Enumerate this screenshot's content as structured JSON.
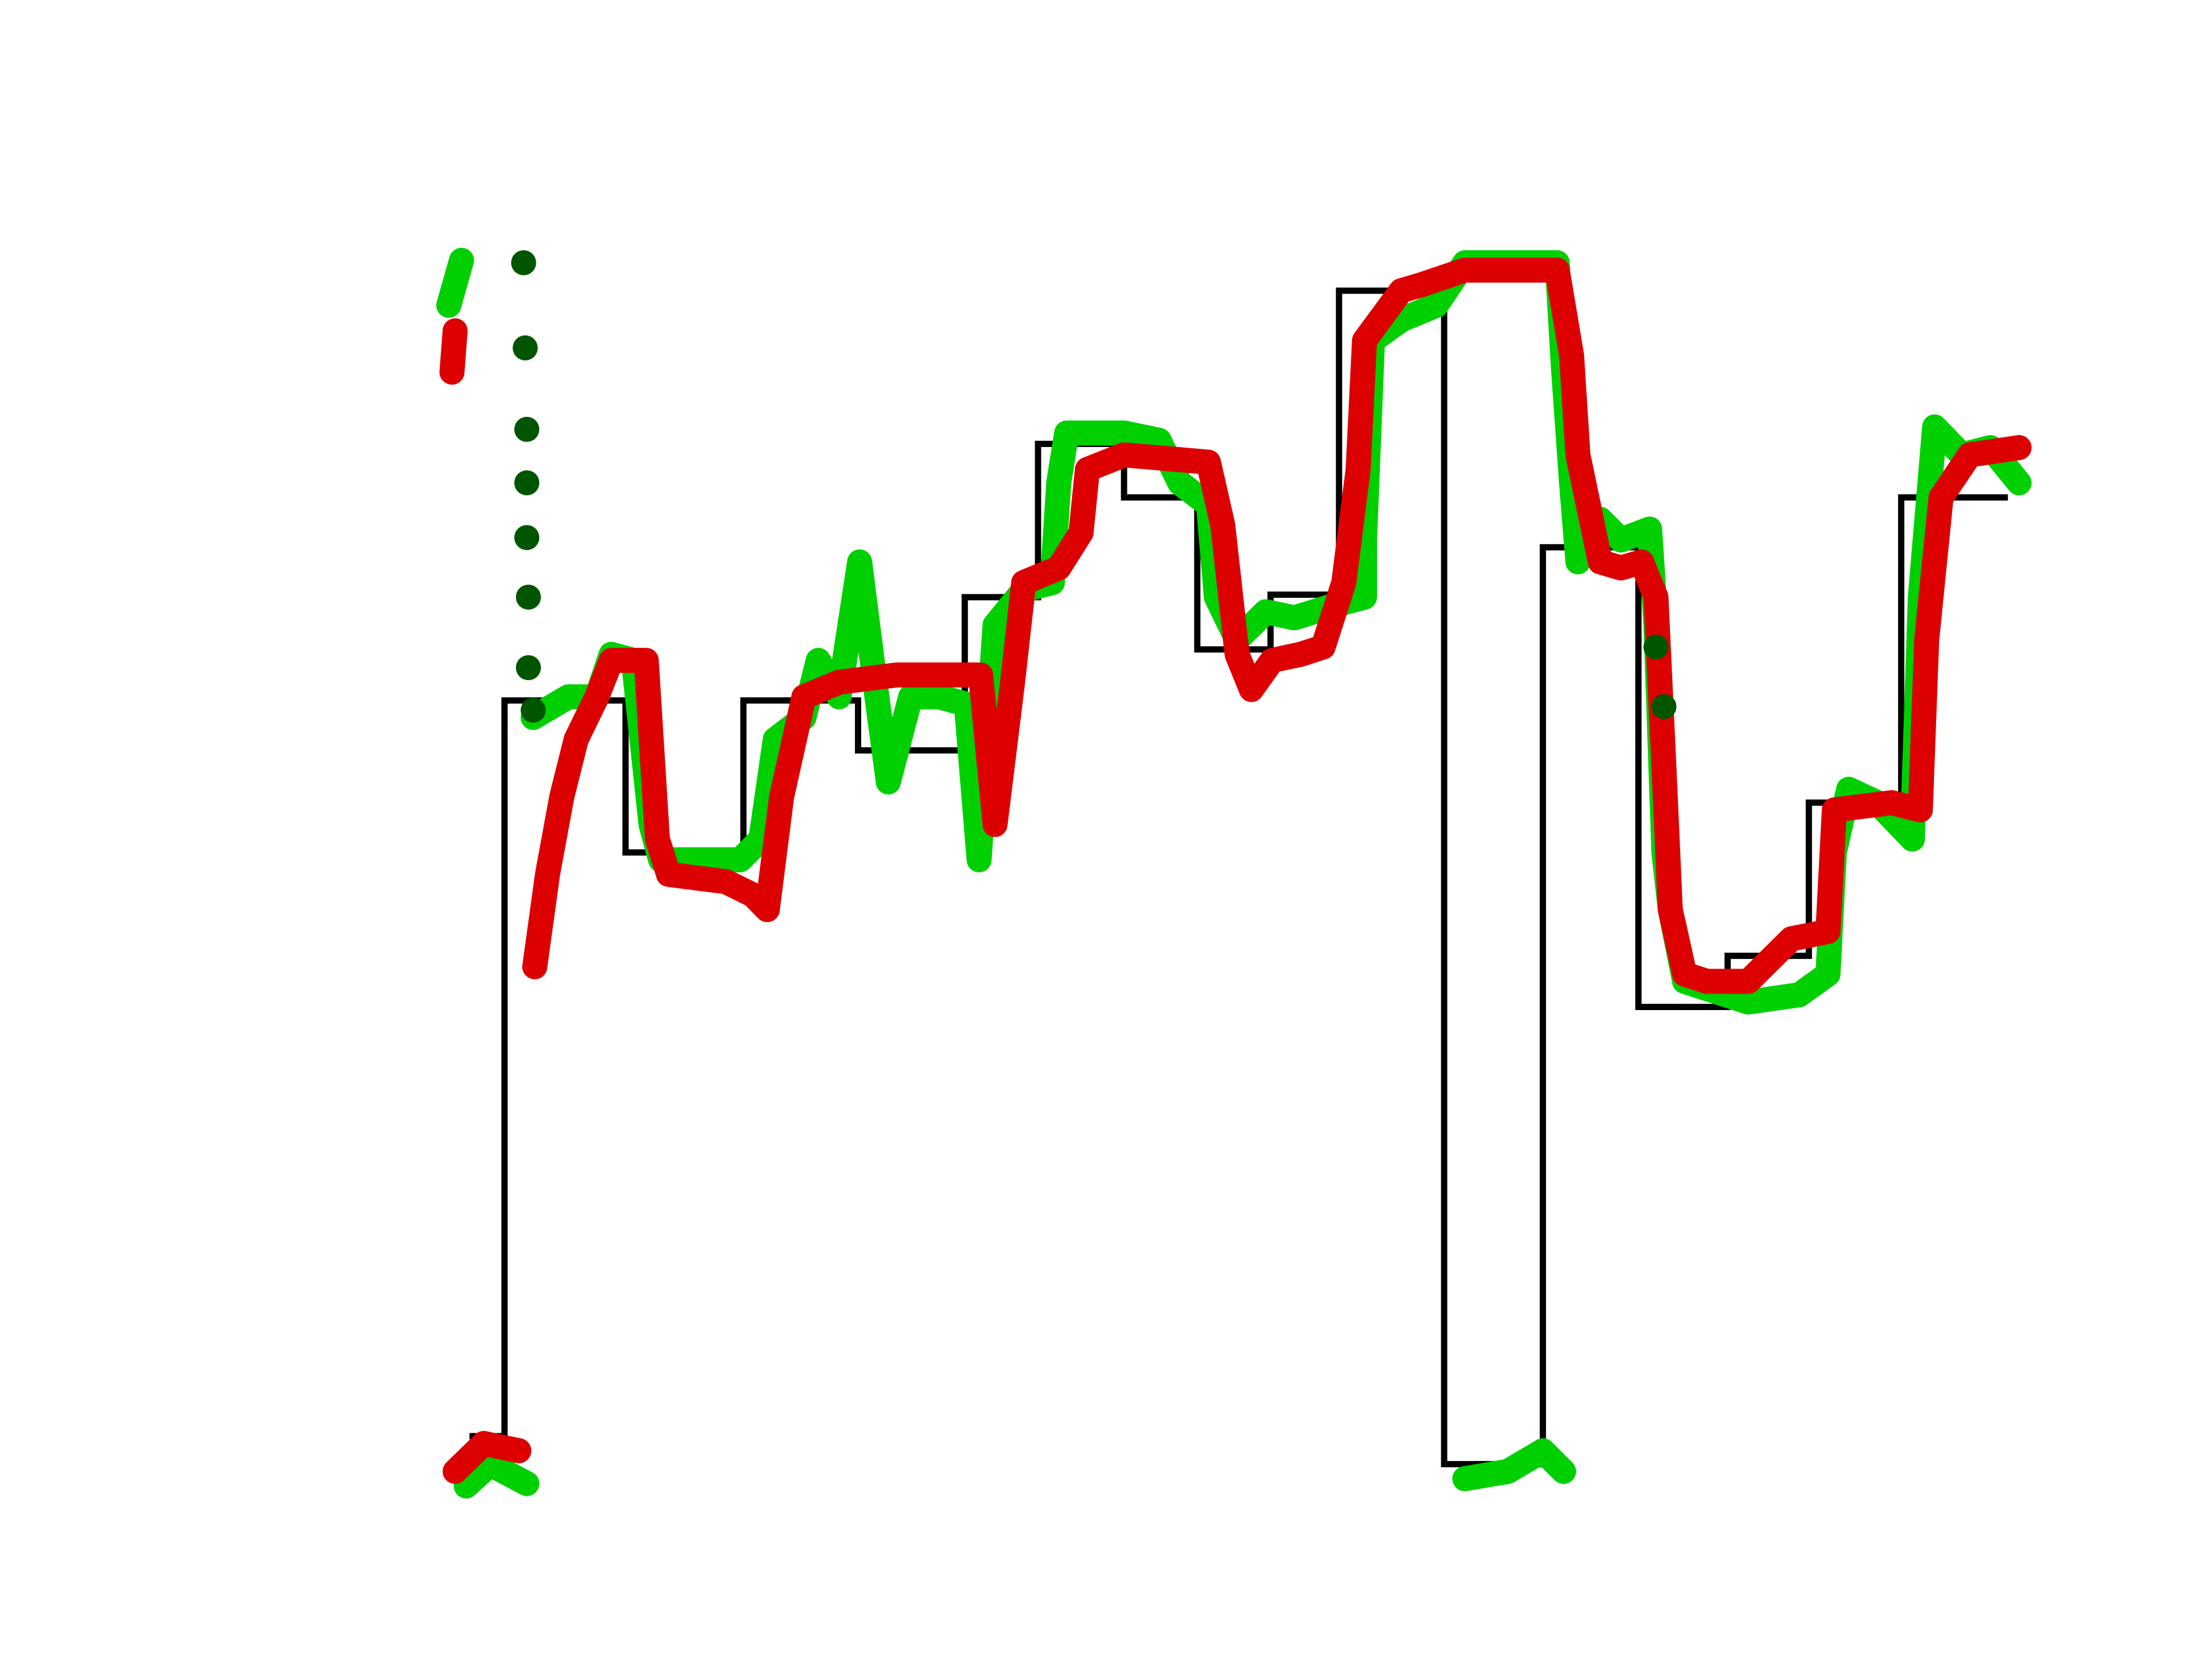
{
  "chart_data": {
    "type": "line",
    "xlim": [
      0,
      100
    ],
    "ylim": [
      0,
      100
    ],
    "series": [
      {
        "draw": "step",
        "color": "#000000",
        "x": [
          1.8,
          4.0,
          11.6,
          19.0,
          26.2,
          32.9,
          37.5,
          42.9,
          47.5,
          52.1,
          56.4,
          63.0,
          69.2,
          75.2,
          80.8,
          85.9,
          91.7,
          98.4
        ],
        "values": [
          3.5,
          64.0,
          51.5,
          64.0,
          59.9,
          72.5,
          85.1,
          80.7,
          68.2,
          72.7,
          97.7,
          1.2,
          76.6,
          38.8,
          43.0,
          55.6,
          80.7,
          80.7
        ]
      },
      {
        "draw": "line",
        "color": "#00d000",
        "x": [
          0.5,
          1.3,
          null,
          1.6,
          3.1,
          5.4,
          null,
          5.8,
          8.0,
          9.8,
          10.7,
          12.1,
          13.2,
          13.8,
          18.8,
          20.1,
          21.0,
          22.8,
          23.7,
          25.0,
          26.3,
          27.2,
          28.1,
          29.5,
          31.3,
          33.0,
          33.8,
          34.8,
          36.6,
          38.4,
          38.8,
          39.3,
          42.9,
          45.1,
          46.4,
          48.2,
          48.7,
          50.0,
          51.8,
          53.6,
          56.3,
          58.0,
          58.0,
          58.5,
          60.3,
          62.5,
          64.3,
          70.1,
          70.5,
          71.0,
          71.4,
          72.8,
          74.1,
          75.9,
          76.3,
          76.8,
          77.2,
          78.1,
          82.1,
          85.3,
          87.1,
          87.5,
          88.4,
          90.2,
          92.4,
          92.9,
          93.8,
          95.5,
          97.3,
          99.1,
          null,
          64.3,
          67.0,
          69.2,
          70.5
        ],
        "values": [
          96.5,
          100.2,
          null,
          -0.6,
          1.2,
          -0.4,
          null,
          62.6,
          64.3,
          64.3,
          67.8,
          67.3,
          53.8,
          50.9,
          50.9,
          52.6,
          60.8,
          62.6,
          67.3,
          64.3,
          75.4,
          66.1,
          57.3,
          64.3,
          64.3,
          63.7,
          50.9,
          70.2,
          73.1,
          73.7,
          81.9,
          86.0,
          86.0,
          85.4,
          81.9,
          80.1,
          72.5,
          69.0,
          71.3,
          70.8,
          71.9,
          72.5,
          77.2,
          93.6,
          95.3,
          96.5,
          100,
          100,
          91.2,
          81.9,
          75.4,
          78.9,
          77.2,
          78.1,
          70.2,
          51.5,
          46.8,
          40.9,
          39.2,
          39.8,
          41.5,
          51.5,
          56.7,
          55.6,
          52.6,
          72.5,
          86.5,
          84.2,
          84.8,
          81.9,
          null,
          0,
          0.6,
          2.3,
          0.6
        ]
      },
      {
        "draw": "line",
        "color": "#dd0000",
        "x": [
          0.7,
          0.9,
          null,
          0.9,
          2.7,
          4.9,
          null,
          5.9,
          6.7,
          7.6,
          8.5,
          9.8,
          10.7,
          12.9,
          13.6,
          14.3,
          17.9,
          19.6,
          20.5,
          21.4,
          22.8,
          25.0,
          28.6,
          33.9,
          34.8,
          35.9,
          36.6,
          38.8,
          40.2,
          40.6,
          42.9,
          48.2,
          49.1,
          50.0,
          50.9,
          52.2,
          54.0,
          55.4,
          56.7,
          57.6,
          58.0,
          60.3,
          61.6,
          64.3,
          70.1,
          71.0,
          71.4,
          72.8,
          74.1,
          75.4,
          76.3,
          76.8,
          77.2,
          78.1,
          79.5,
          82.1,
          84.8,
          87.1,
          87.5,
          91.1,
          92.9,
          93.3,
          94.2,
          96.0,
          99.1
        ],
        "values": [
          91.0,
          94.4,
          null,
          0.6,
          2.9,
          2.3,
          null,
          42.1,
          49.7,
          56.1,
          60.8,
          64.3,
          67.3,
          67.3,
          52.6,
          49.7,
          49.1,
          48.0,
          46.8,
          56.1,
          64.3,
          65.5,
          66.1,
          66.1,
          53.8,
          65.5,
          73.7,
          74.9,
          77.8,
          83.0,
          84.2,
          83.6,
          78.4,
          67.8,
          64.9,
          67.3,
          67.8,
          68.4,
          73.7,
          83.0,
          93.6,
          97.7,
          98.2,
          99.4,
          99.4,
          92.4,
          84.2,
          75.4,
          74.9,
          75.4,
          72.5,
          58.5,
          46.8,
          41.5,
          40.9,
          40.9,
          44.4,
          45.0,
          55.0,
          55.6,
          55.0,
          69.0,
          80.7,
          84.2,
          84.8
        ]
      },
      {
        "draw": "markers",
        "color": "#005500",
        "x": [
          5.2,
          5.3,
          5.4,
          5.4,
          5.4,
          5.5,
          5.5,
          5.8,
          76.3,
          76.8
        ],
        "values": [
          100,
          93.0,
          86.3,
          81.9,
          77.4,
          72.5,
          66.7,
          63.2,
          68.4,
          63.5
        ]
      }
    ]
  }
}
